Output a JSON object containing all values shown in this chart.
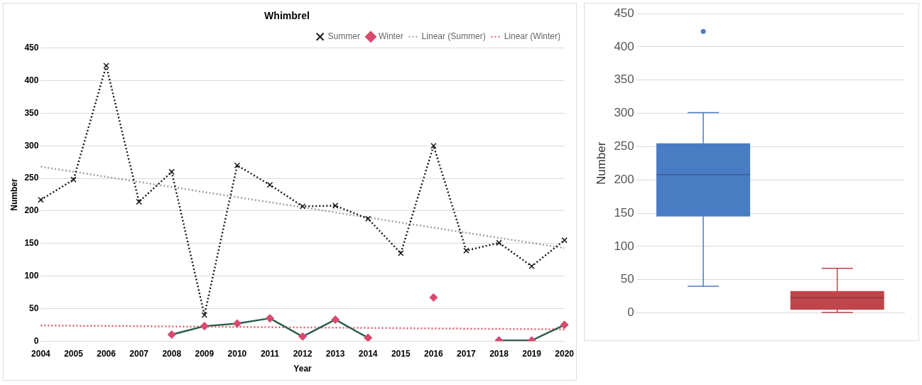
{
  "chart_data": [
    {
      "type": "line",
      "title": "Whimbrel",
      "xlabel": "Year",
      "ylabel": "Number",
      "categories": [
        "2004",
        "2005",
        "2006",
        "2007",
        "2008",
        "2009",
        "2010",
        "2011",
        "2012",
        "2013",
        "2014",
        "2015",
        "2016",
        "2017",
        "2018",
        "2019",
        "2020"
      ],
      "series": [
        {
          "name": "Summer",
          "color": "#1a1a1a",
          "marker": "cross",
          "line_style": "dotted",
          "values": [
            217,
            248,
            423,
            214,
            260,
            40,
            270,
            240,
            207,
            208,
            188,
            135,
            300,
            139,
            151,
            115,
            155
          ]
        },
        {
          "name": "Winter",
          "color": "#2e5e4e",
          "colors": [
            "#d84a6e",
            "#d84a6e",
            "#d84a6e",
            "#d84a6e",
            "#d84a6e",
            "#d84a6e",
            "#d84a6e",
            "#d84a6e",
            "#d84a6e",
            "#d84a6e",
            "#d84a6e",
            "#d84a6e",
            "#d84a6e",
            "#d84a6e",
            "#d84a6e",
            "#d84a6e",
            "#d84a6e"
          ],
          "marker": "diamond",
          "line_style": "solid",
          "values": [
            null,
            null,
            null,
            null,
            10,
            23,
            27,
            35,
            7,
            33,
            5,
            null,
            67,
            null,
            1,
            1,
            25
          ]
        },
        {
          "name": "Linear (Summer)",
          "type": "line",
          "color": "#a0a0a0",
          "marker": "none",
          "line_style": "dotted",
          "values": [
            268,
            null,
            null,
            null,
            null,
            null,
            null,
            null,
            null,
            null,
            null,
            null,
            null,
            null,
            null,
            null,
            143
          ]
        },
        {
          "name": "Linear (Winter)",
          "type": "line",
          "color": "#e05a6a",
          "marker": "none",
          "line_style": "dotted",
          "values": [
            24,
            null,
            null,
            null,
            null,
            null,
            null,
            null,
            null,
            null,
            null,
            null,
            null,
            null,
            null,
            null,
            18
          ]
        }
      ],
      "ylim": [
        0,
        450
      ],
      "yticks": [
        0,
        50,
        100,
        150,
        200,
        250,
        300,
        350,
        400,
        450
      ],
      "grid": "y",
      "legend": "top right"
    },
    {
      "type": "box",
      "ylabel": "Number",
      "categories": [
        null,
        null
      ],
      "colors": [
        "#4a7cc4",
        "#c0454a"
      ],
      "boxes": [
        {
          "low": 40,
          "q1": 145,
          "median": 208,
          "q3": 255,
          "high": 301,
          "outliers": [
            423
          ]
        },
        {
          "low": 1,
          "q1": 5,
          "median": 23,
          "q3": 33,
          "high": 67
        }
      ],
      "ylim": [
        0,
        450
      ],
      "yticks": [
        0,
        50,
        100,
        150,
        200,
        250,
        300,
        350,
        400,
        450
      ],
      "grid": "y"
    }
  ]
}
